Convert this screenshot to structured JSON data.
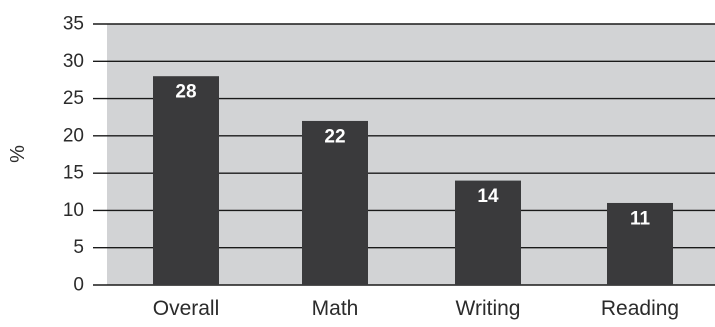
{
  "chart_data": {
    "type": "bar",
    "categories": [
      "Overall",
      "Math",
      "Writing",
      "Reading"
    ],
    "values": [
      28,
      22,
      14,
      11
    ],
    "data_labels": [
      "28",
      "22",
      "14",
      "11"
    ],
    "title": "",
    "xlabel": "",
    "ylabel": "%",
    "ylim": [
      0,
      35
    ],
    "yticks": [
      0,
      5,
      10,
      15,
      20,
      25,
      30,
      35
    ],
    "grid": true,
    "legend": "none"
  },
  "colors": {
    "plot_background": "#d2d3d5",
    "bar": "#3a3a3c",
    "gridline": "#1a1a1a",
    "text": "#2b2b2b",
    "data_label": "#ffffff"
  }
}
